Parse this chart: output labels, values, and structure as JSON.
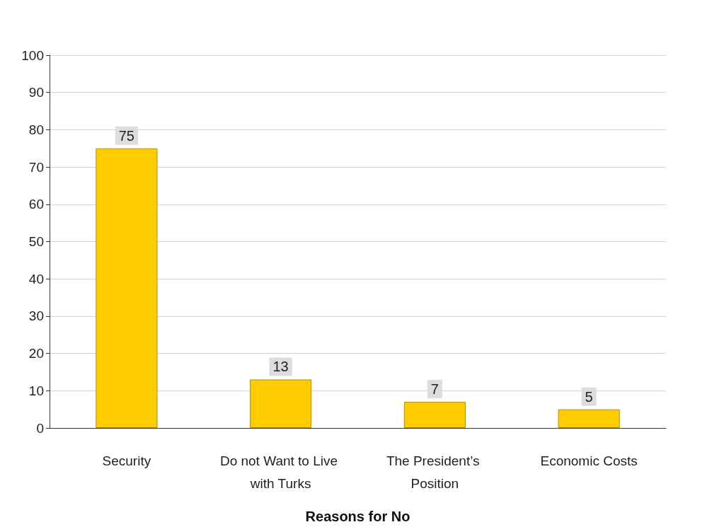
{
  "chart_data": {
    "type": "bar",
    "xlabel": "Reasons for No",
    "categories": [
      "Security",
      "Do not Want to Live with Turks",
      "The President’s Position",
      "Economic Costs"
    ],
    "values": [
      75,
      13,
      7,
      5
    ],
    "color": "#ffcc00",
    "ylim": [
      0,
      100
    ],
    "yticks": [
      0,
      10,
      20,
      30,
      40,
      50,
      60,
      70,
      80,
      90,
      100
    ],
    "grid": "y",
    "data_labels": true
  }
}
